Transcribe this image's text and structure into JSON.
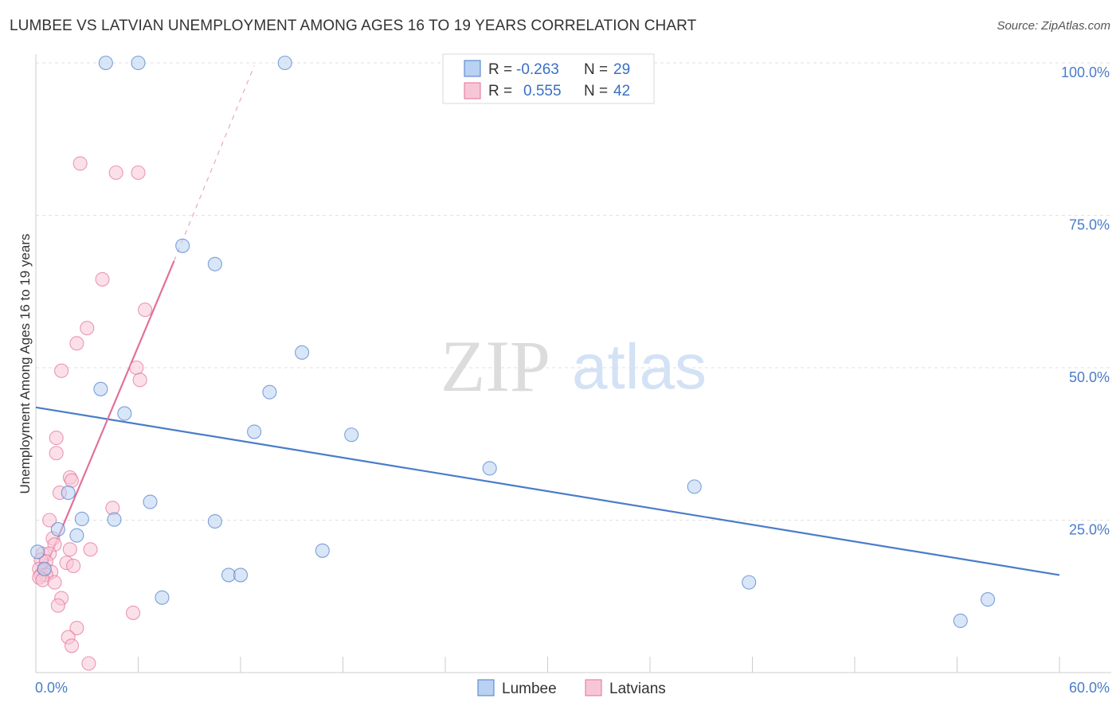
{
  "header": {
    "title": "LUMBEE VS LATVIAN UNEMPLOYMENT AMONG AGES 16 TO 19 YEARS CORRELATION CHART",
    "source": "Source: ZipAtlas.com"
  },
  "watermark": {
    "zip": "ZIP",
    "atlas": "atlas"
  },
  "chart_data": {
    "type": "scatter",
    "title": "LUMBEE VS LATVIAN UNEMPLOYMENT AMONG AGES 16 TO 19 YEARS CORRELATION CHART",
    "xlabel": "",
    "ylabel": "Unemployment Among Ages 16 to 19 years",
    "xlim": [
      0,
      60
    ],
    "ylim": [
      0,
      100
    ],
    "x_tick_labels": [
      "0.0%",
      "60.0%"
    ],
    "y_ticks": [
      25,
      50,
      75,
      100
    ],
    "y_tick_labels": [
      "25.0%",
      "50.0%",
      "75.0%",
      "100.0%"
    ],
    "legend_position": "bottom-center",
    "stats": [
      {
        "r_label": "R =",
        "r_value": "-0.263",
        "n_label": "N =",
        "n_value": "29"
      },
      {
        "r_label": "R =",
        "r_value": "0.555",
        "n_label": "N =",
        "n_value": "42"
      }
    ],
    "series": [
      {
        "name": "Lumbee",
        "color": "#4a7cc9",
        "fill": "#b9d1f2",
        "trend": {
          "x": [
            0,
            60
          ],
          "y": [
            43.5,
            16.0
          ],
          "dashed": false
        },
        "points": [
          {
            "x": 4.1,
            "y": 100
          },
          {
            "x": 6.0,
            "y": 100
          },
          {
            "x": 14.6,
            "y": 100
          },
          {
            "x": 8.6,
            "y": 70
          },
          {
            "x": 10.5,
            "y": 67
          },
          {
            "x": 15.6,
            "y": 52.5
          },
          {
            "x": 3.8,
            "y": 46.5
          },
          {
            "x": 13.7,
            "y": 46
          },
          {
            "x": 5.2,
            "y": 42.5
          },
          {
            "x": 12.8,
            "y": 39.5
          },
          {
            "x": 18.5,
            "y": 39
          },
          {
            "x": 26.6,
            "y": 33.5
          },
          {
            "x": 38.6,
            "y": 30.5
          },
          {
            "x": 1.9,
            "y": 29.5
          },
          {
            "x": 6.7,
            "y": 28
          },
          {
            "x": 2.7,
            "y": 25.2
          },
          {
            "x": 4.6,
            "y": 25.1
          },
          {
            "x": 10.5,
            "y": 24.8
          },
          {
            "x": 1.3,
            "y": 23.5
          },
          {
            "x": 2.4,
            "y": 22.5
          },
          {
            "x": 16.8,
            "y": 20
          },
          {
            "x": 0.1,
            "y": 19.8
          },
          {
            "x": 0.5,
            "y": 17
          },
          {
            "x": 11.3,
            "y": 16
          },
          {
            "x": 12.0,
            "y": 16
          },
          {
            "x": 7.4,
            "y": 12.3
          },
          {
            "x": 41.8,
            "y": 14.8
          },
          {
            "x": 55.8,
            "y": 12
          },
          {
            "x": 54.2,
            "y": 8.5
          }
        ]
      },
      {
        "name": "Latvians",
        "color": "#e2709a",
        "fill": "#f7c6d6",
        "trend": {
          "x": [
            0.3,
            8.1
          ],
          "y": [
            15.5,
            67.5
          ],
          "dashed": false
        },
        "trend_ext": {
          "x": [
            8.1,
            12.8
          ],
          "y": [
            67.5,
            99.5
          ],
          "dashed": true
        },
        "points": [
          {
            "x": 2.6,
            "y": 83.5
          },
          {
            "x": 4.7,
            "y": 82
          },
          {
            "x": 6.0,
            "y": 82
          },
          {
            "x": 3.9,
            "y": 64.5
          },
          {
            "x": 6.4,
            "y": 59.5
          },
          {
            "x": 3.0,
            "y": 56.5
          },
          {
            "x": 2.4,
            "y": 54
          },
          {
            "x": 1.5,
            "y": 49.5
          },
          {
            "x": 5.9,
            "y": 50
          },
          {
            "x": 6.1,
            "y": 48
          },
          {
            "x": 1.2,
            "y": 38.5
          },
          {
            "x": 1.2,
            "y": 36
          },
          {
            "x": 2.0,
            "y": 32
          },
          {
            "x": 2.1,
            "y": 31.5
          },
          {
            "x": 1.4,
            "y": 29.5
          },
          {
            "x": 4.5,
            "y": 27
          },
          {
            "x": 0.8,
            "y": 25
          },
          {
            "x": 1.0,
            "y": 22
          },
          {
            "x": 1.1,
            "y": 21
          },
          {
            "x": 2.0,
            "y": 20.2
          },
          {
            "x": 3.2,
            "y": 20.2
          },
          {
            "x": 0.4,
            "y": 19.5
          },
          {
            "x": 0.8,
            "y": 19.5
          },
          {
            "x": 0.3,
            "y": 18.5
          },
          {
            "x": 0.6,
            "y": 18.2
          },
          {
            "x": 1.8,
            "y": 18
          },
          {
            "x": 2.2,
            "y": 17.5
          },
          {
            "x": 0.2,
            "y": 17
          },
          {
            "x": 0.5,
            "y": 16.8
          },
          {
            "x": 0.9,
            "y": 16.5
          },
          {
            "x": 0.3,
            "y": 16
          },
          {
            "x": 0.6,
            "y": 16
          },
          {
            "x": 0.2,
            "y": 15.6
          },
          {
            "x": 0.4,
            "y": 15.2
          },
          {
            "x": 1.1,
            "y": 14.8
          },
          {
            "x": 1.5,
            "y": 12.2
          },
          {
            "x": 1.3,
            "y": 11
          },
          {
            "x": 5.7,
            "y": 9.8
          },
          {
            "x": 2.4,
            "y": 7.3
          },
          {
            "x": 1.9,
            "y": 5.8
          },
          {
            "x": 2.1,
            "y": 4.4
          },
          {
            "x": 3.1,
            "y": 1.5
          }
        ]
      }
    ]
  }
}
